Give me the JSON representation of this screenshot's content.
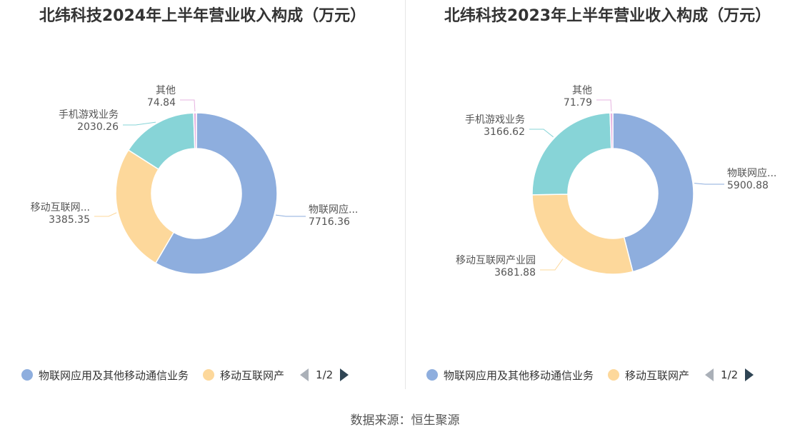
{
  "colors": {
    "iot": "#8eaede",
    "mobile": "#fdd89b",
    "game": "#87d4d7",
    "other": "#e6b3e0"
  },
  "chart_data": [
    {
      "type": "pie",
      "title": "北纬科技2024年上半年营业收入构成（万元）",
      "slices": [
        {
          "label": "物联网应...",
          "value": 7716.36,
          "value_label": "7716.36",
          "color_key": "iot"
        },
        {
          "label": "移动互联网...",
          "value": 3385.35,
          "value_label": "3385.35",
          "color_key": "mobile"
        },
        {
          "label": "手机游戏业务",
          "value": 2030.26,
          "value_label": "2030.26",
          "color_key": "game"
        },
        {
          "label": "其他",
          "value": 74.84,
          "value_label": "74.84",
          "color_key": "other"
        }
      ],
      "legend": {
        "items": [
          {
            "label": "物联网应用及其他移动通信业务",
            "color_key": "iot"
          },
          {
            "label": "移动互联网产",
            "color_key": "mobile"
          }
        ],
        "page": "1/2",
        "placement": "bottom"
      }
    },
    {
      "type": "pie",
      "title": "北纬科技2023年上半年营业收入构成（万元）",
      "slices": [
        {
          "label": "物联网应...",
          "value": 5900.88,
          "value_label": "5900.88",
          "color_key": "iot"
        },
        {
          "label": "移动互联网产业园",
          "value": 3681.88,
          "value_label": "3681.88",
          "color_key": "mobile"
        },
        {
          "label": "手机游戏业务",
          "value": 3166.62,
          "value_label": "3166.62",
          "color_key": "game"
        },
        {
          "label": "其他",
          "value": 71.79,
          "value_label": "71.79",
          "color_key": "other"
        }
      ],
      "legend": {
        "items": [
          {
            "label": "物联网应用及其他移动通信业务",
            "color_key": "iot"
          },
          {
            "label": "移动互联网产",
            "color_key": "mobile"
          }
        ],
        "page": "1/2",
        "placement": "bottom"
      }
    }
  ],
  "source": "数据来源：恒生聚源"
}
